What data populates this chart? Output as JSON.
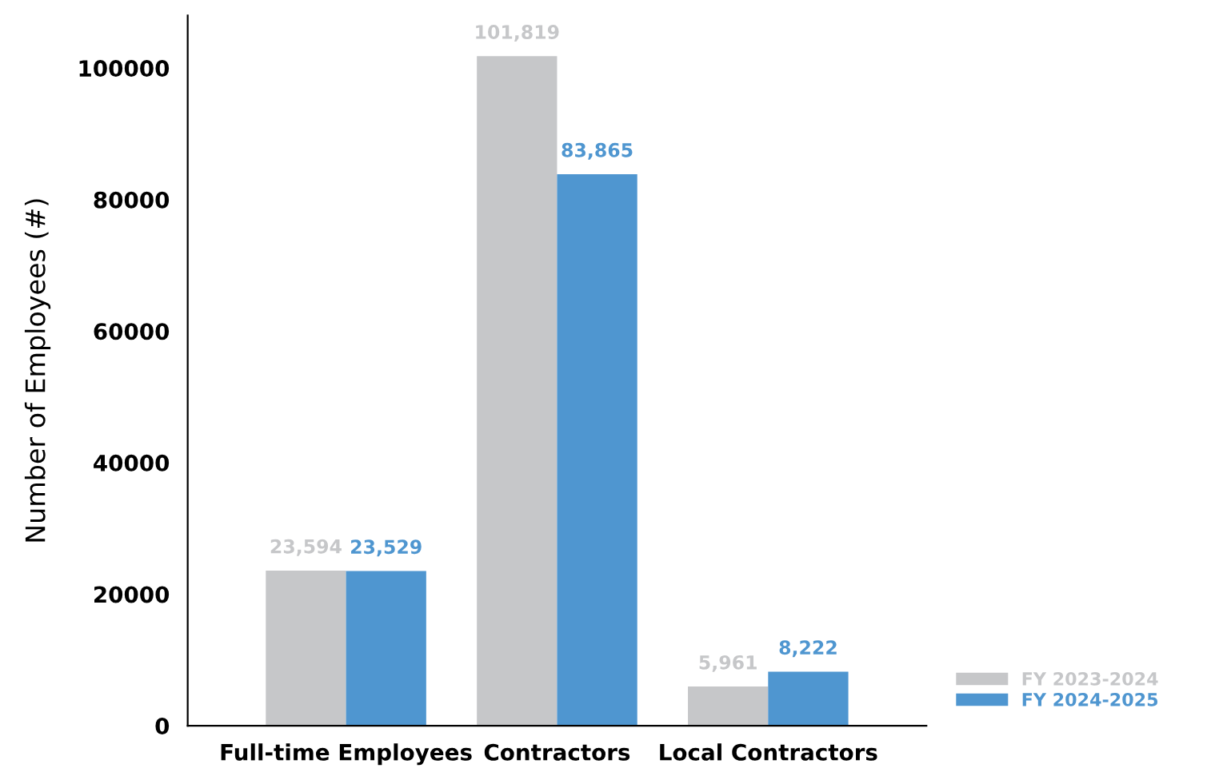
{
  "chart_data": {
    "type": "bar",
    "ylabel": "Number of Employees (#)",
    "categories": [
      "Full-time Employees",
      "Contractors",
      "Local Contractors"
    ],
    "series": [
      {
        "name": "FY 2023-2024",
        "color": "#c6c7c9",
        "values": [
          23594,
          101819,
          5961
        ],
        "value_labels": [
          "23,594",
          "101,819",
          "5,961"
        ]
      },
      {
        "name": "FY 2024-2025",
        "color": "#4f96d0",
        "values": [
          23529,
          83865,
          8222
        ],
        "value_labels": [
          "23,529",
          "83,865",
          "8,222"
        ]
      }
    ],
    "ylim": [
      0,
      108000
    ],
    "yticks": [
      0,
      20000,
      40000,
      60000,
      80000,
      100000
    ],
    "grid": false,
    "legend": "bottom right"
  }
}
